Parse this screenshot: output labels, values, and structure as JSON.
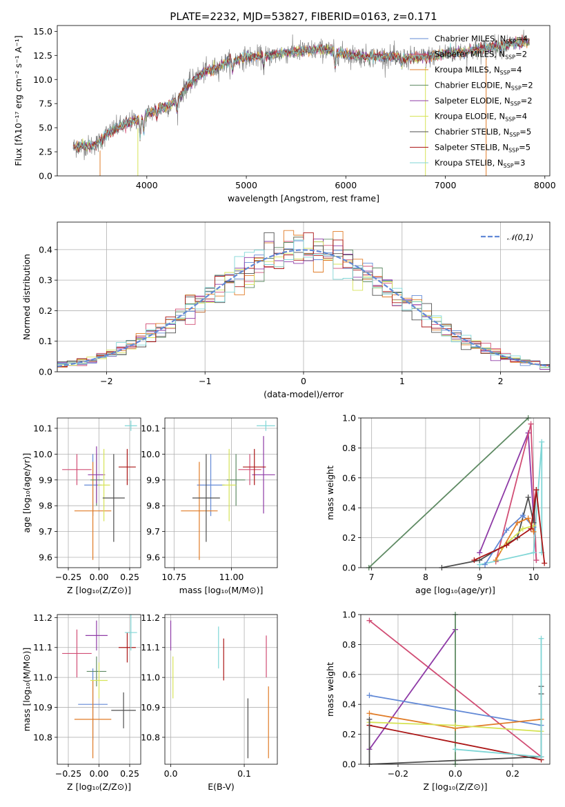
{
  "chart_data": [
    {
      "type": "line",
      "title": "PLATE=2232, MJD=53827, FIBERID=0163, z=0.171",
      "xlabel": "wavelength [Angstrom, rest frame]",
      "ylabel": "Flux [fλ10⁻¹⁷ erg cm⁻² s⁻¹ A⁻¹]",
      "xlim": [
        3100,
        8050
      ],
      "ylim": [
        0,
        15.6
      ],
      "xticks": [
        4000,
        5000,
        6000,
        7000,
        8000
      ],
      "yticks": [
        0.0,
        2.5,
        5.0,
        7.5,
        10.0,
        12.5,
        15.0
      ],
      "xtick_labels": [
        "4000",
        "5000",
        "6000",
        "7000",
        "8000"
      ],
      "ytick_labels": [
        "0.0",
        "2.5",
        "5.0",
        "7.5",
        "10.0",
        "12.5",
        "15.0"
      ],
      "grid": false,
      "legend_position": "top-right",
      "observed_spectrum": {
        "color": "#808080",
        "x": [
          3260,
          3400,
          3500,
          3600,
          3700,
          3800,
          3900,
          4000,
          4100,
          4200,
          4300,
          4400,
          4500,
          4600,
          4700,
          4800,
          4900,
          5000,
          5200,
          5400,
          5600,
          5800,
          6000,
          6200,
          6400,
          6600,
          6800,
          7000,
          7200,
          7400,
          7600,
          7800
        ],
        "y": [
          3.0,
          3.1,
          3.3,
          4.4,
          5.0,
          5.4,
          5.9,
          6.4,
          6.9,
          7.2,
          7.8,
          9.3,
          10.2,
          10.9,
          11.2,
          11.8,
          12.0,
          12.3,
          12.4,
          12.8,
          13.0,
          13.1,
          12.6,
          12.4,
          12.4,
          12.2,
          12.3,
          12.7,
          12.9,
          13.2,
          13.6,
          13.9
        ]
      },
      "series": [
        {
          "name": "Chabrier MILES, N_SSP=4",
          "color": "#6289d6"
        },
        {
          "name": "Salpeter MILES, N_SSP=2",
          "color": "#d14d74"
        },
        {
          "name": "Kroupa MILES, N_SSP=4",
          "color": "#e07b26"
        },
        {
          "name": "Chabrier ELODIE, N_SSP=2",
          "color": "#5e8a63"
        },
        {
          "name": "Salpeter ELODIE, N_SSP=2",
          "color": "#8e3aa6"
        },
        {
          "name": "Kroupa ELODIE, N_SSP=4",
          "color": "#d6e356"
        },
        {
          "name": "Chabrier STELIB, N_SSP=5",
          "color": "#4e4e4e"
        },
        {
          "name": "Salpeter STELIB, N_SSP=5",
          "color": "#ab1515"
        },
        {
          "name": "Kroupa STELIB, N_SSP=3",
          "color": "#7fd6d6"
        }
      ]
    },
    {
      "type": "bar",
      "subtype": "step-histogram",
      "xlabel": "(data-model)/error",
      "ylabel": "Normed distribution",
      "xlim": [
        -2.5,
        2.5
      ],
      "ylim": [
        0,
        0.49
      ],
      "xticks": [
        -2,
        -1,
        0,
        1,
        2
      ],
      "yticks": [
        0.0,
        0.1,
        0.2,
        0.3,
        0.4
      ],
      "xtick_labels": [
        "−2",
        "−1",
        "0",
        "1",
        "2"
      ],
      "ytick_labels": [
        "0.0",
        "0.1",
        "0.2",
        "0.3",
        "0.4"
      ],
      "grid": true,
      "legend_position": "top-right",
      "reference_curve": {
        "name": "𝒩(0,1)",
        "color": "#6289d6",
        "style": "dashed",
        "mean": 0,
        "sigma": 1
      },
      "bin_width": 0.2
    },
    {
      "type": "scatter",
      "subtype": "error-bars",
      "xlabel": "Z [log₁₀(Z/Z⊙)]",
      "ylabel": "age  [log₁₀(age/yr)]",
      "xlim": [
        -0.34,
        0.34
      ],
      "ylim": [
        9.56,
        10.14
      ],
      "xticks": [
        -0.25,
        0.0,
        0.25
      ],
      "yticks": [
        9.6,
        9.7,
        9.8,
        9.9,
        10.0,
        10.1
      ],
      "xtick_labels": [
        "−0.25",
        "0.00",
        "0.25"
      ],
      "ytick_labels": [
        "9.6",
        "9.7",
        "9.8",
        "9.9",
        "10.0",
        "10.1"
      ],
      "grid": true,
      "points": [
        {
          "color": "#6289d6",
          "x": -0.05,
          "xerr": 0.07,
          "y": 9.88,
          "yerr": 0.12
        },
        {
          "color": "#d14d74",
          "x": -0.18,
          "xerr": 0.12,
          "y": 9.94,
          "yerr": 0.06
        },
        {
          "color": "#e07b26",
          "x": -0.05,
          "xerr": 0.15,
          "y": 9.78,
          "yerr": 0.19
        },
        {
          "color": "#5e8a63",
          "x": -0.02,
          "xerr": 0.05,
          "y": 9.9,
          "yerr": 0.1
        },
        {
          "color": "#8e3aa6",
          "x": -0.02,
          "xerr": 0.07,
          "y": 9.92,
          "yerr": 0.11
        },
        {
          "color": "#d6e356",
          "x": 0.04,
          "xerr": 0.05,
          "y": 9.88,
          "yerr": 0.14
        },
        {
          "color": "#4e4e4e",
          "x": 0.12,
          "xerr": 0.09,
          "y": 9.83,
          "yerr": 0.17
        },
        {
          "color": "#ab1515",
          "x": 0.23,
          "xerr": 0.07,
          "y": 9.95,
          "yerr": 0.07
        },
        {
          "color": "#7fd6d6",
          "x": 0.26,
          "xerr": 0.05,
          "y": 10.11,
          "yerr": 0.02
        }
      ]
    },
    {
      "type": "scatter",
      "subtype": "error-bars",
      "xlabel": "mass [log₁₀(M/M⊙)]",
      "ylabel": "",
      "xlim": [
        10.71,
        11.2
      ],
      "ylim": [
        9.56,
        10.14
      ],
      "xticks": [
        10.75,
        11.0
      ],
      "yticks": [
        9.6,
        9.7,
        9.8,
        9.9,
        10.0,
        10.1
      ],
      "xtick_labels": [
        "10.75",
        "11.00"
      ],
      "ytick_labels": [
        "9.6",
        "9.7",
        "9.8",
        "9.9",
        "10.0",
        "10.1"
      ],
      "grid": true,
      "points": [
        {
          "color": "#6289d6",
          "x": 10.91,
          "xerr": 0.06,
          "y": 9.88,
          "yerr": 0.12
        },
        {
          "color": "#d14d74",
          "x": 11.08,
          "xerr": 0.05,
          "y": 9.94,
          "yerr": 0.06
        },
        {
          "color": "#e07b26",
          "x": 10.86,
          "xerr": 0.08,
          "y": 9.78,
          "yerr": 0.19
        },
        {
          "color": "#5e8a63",
          "x": 11.02,
          "xerr": 0.04,
          "y": 9.9,
          "yerr": 0.1
        },
        {
          "color": "#8e3aa6",
          "x": 11.14,
          "xerr": 0.05,
          "y": 9.92,
          "yerr": 0.15
        },
        {
          "color": "#d6e356",
          "x": 10.99,
          "xerr": 0.03,
          "y": 9.88,
          "yerr": 0.14
        },
        {
          "color": "#4e4e4e",
          "x": 10.89,
          "xerr": 0.06,
          "y": 9.83,
          "yerr": 0.17
        },
        {
          "color": "#ab1515",
          "x": 11.1,
          "xerr": 0.05,
          "y": 9.95,
          "yerr": 0.07
        },
        {
          "color": "#7fd6d6",
          "x": 11.15,
          "xerr": 0.04,
          "y": 10.11,
          "yerr": 0.02
        }
      ]
    },
    {
      "type": "line",
      "xlabel": "age  [log₁₀(age/yr)]",
      "ylabel": "mass weight",
      "xlim": [
        6.8,
        10.3
      ],
      "ylim": [
        0,
        1.0
      ],
      "xticks": [
        7,
        8,
        9,
        10
      ],
      "yticks": [
        0.0,
        0.2,
        0.4,
        0.6,
        0.8,
        1.0
      ],
      "xtick_labels": [
        "7",
        "8",
        "9",
        "10"
      ],
      "ytick_labels": [
        "0.0",
        "0.2",
        "0.4",
        "0.6",
        "0.8",
        "1.0"
      ],
      "grid": true,
      "series": [
        {
          "color": "#5e8a63",
          "x": [
            6.95,
            9.9
          ],
          "y": [
            0.0,
            1.0
          ]
        },
        {
          "color": "#8e3aa6",
          "x": [
            9.0,
            9.9,
            10.05
          ],
          "y": [
            0.1,
            0.9,
            0.05
          ]
        },
        {
          "color": "#d14d74",
          "x": [
            9.3,
            9.95,
            10.05
          ],
          "y": [
            0.04,
            0.96,
            0.05
          ]
        },
        {
          "color": "#7fd6d6",
          "x": [
            9.0,
            10.0,
            10.15,
            10.15
          ],
          "y": [
            0.02,
            0.1,
            0.84,
            0.1
          ]
        },
        {
          "color": "#4e4e4e",
          "x": [
            8.3,
            9.0,
            9.7,
            9.9,
            10.0,
            10.05
          ],
          "y": [
            0.0,
            0.05,
            0.2,
            0.47,
            0.3,
            0.52
          ]
        },
        {
          "color": "#6289d6",
          "x": [
            9.1,
            9.5,
            9.8,
            10.0
          ],
          "y": [
            0.02,
            0.25,
            0.35,
            0.27
          ]
        },
        {
          "color": "#e07b26",
          "x": [
            9.3,
            9.7,
            9.9,
            10.0
          ],
          "y": [
            0.05,
            0.3,
            0.33,
            0.24
          ]
        },
        {
          "color": "#d6e356",
          "x": [
            9.4,
            9.8,
            10.0
          ],
          "y": [
            0.13,
            0.26,
            0.28
          ]
        },
        {
          "color": "#ab1515",
          "x": [
            8.9,
            9.5,
            9.95,
            10.05,
            10.2
          ],
          "y": [
            0.05,
            0.15,
            0.26,
            0.52,
            0.03
          ]
        }
      ]
    },
    {
      "type": "scatter",
      "subtype": "error-bars",
      "xlabel": "Z [log₁₀(Z/Z⊙)]",
      "ylabel": "mass [log₁₀(M/M⊙)]",
      "xlim": [
        -0.34,
        0.34
      ],
      "ylim": [
        10.71,
        11.21
      ],
      "xticks": [
        -0.25,
        0.0,
        0.25
      ],
      "yticks": [
        10.8,
        10.9,
        11.0,
        11.1,
        11.2
      ],
      "xtick_labels": [
        "−0.25",
        "0.00",
        "0.25"
      ],
      "ytick_labels": [
        "10.8",
        "10.9",
        "11.0",
        "11.1",
        "11.2"
      ],
      "grid": true,
      "points": [
        {
          "color": "#6289d6",
          "x": -0.05,
          "xerr": 0.12,
          "y": 10.91,
          "yerr": 0.12
        },
        {
          "color": "#d14d74",
          "x": -0.18,
          "xerr": 0.12,
          "y": 11.08,
          "yerr": 0.08
        },
        {
          "color": "#e07b26",
          "x": -0.05,
          "xerr": 0.15,
          "y": 10.86,
          "yerr": 0.13
        },
        {
          "color": "#5e8a63",
          "x": -0.02,
          "xerr": 0.08,
          "y": 11.02,
          "yerr": 0.05
        },
        {
          "color": "#8e3aa6",
          "x": -0.02,
          "xerr": 0.09,
          "y": 11.14,
          "yerr": 0.05
        },
        {
          "color": "#d6e356",
          "x": 0.0,
          "xerr": 0.07,
          "y": 10.99,
          "yerr": 0.06
        },
        {
          "color": "#4e4e4e",
          "x": 0.2,
          "xerr": 0.1,
          "y": 10.89,
          "yerr": 0.06
        },
        {
          "color": "#ab1515",
          "x": 0.23,
          "xerr": 0.07,
          "y": 11.1,
          "yerr": 0.05
        },
        {
          "color": "#7fd6d6",
          "x": 0.26,
          "xerr": 0.05,
          "y": 11.15,
          "yerr": 0.06
        }
      ]
    },
    {
      "type": "scatter",
      "subtype": "error-bars",
      "xlabel": "E(B-V)",
      "ylabel": "",
      "xlim": [
        -0.008,
        0.145
      ],
      "ylim": [
        10.71,
        11.21
      ],
      "xticks": [
        0.0,
        0.1
      ],
      "yticks": [
        10.8,
        10.9,
        11.0,
        11.1,
        11.2
      ],
      "xtick_labels": [
        "0.0",
        "0.1"
      ],
      "ytick_labels": [
        "10.8",
        "10.9",
        "11.0",
        "11.1",
        "11.2"
      ],
      "grid": true,
      "points": [
        {
          "color": "#8e3aa6",
          "x": 0.0,
          "xerr": 0,
          "y": 11.14,
          "yerr": 0.05
        },
        {
          "color": "#d6e356",
          "x": 0.003,
          "xerr": 0,
          "y": 11.0,
          "yerr": 0.07
        },
        {
          "color": "#7fd6d6",
          "x": 0.065,
          "xerr": 0,
          "y": 11.1,
          "yerr": 0.07
        },
        {
          "color": "#ab1515",
          "x": 0.072,
          "xerr": 0,
          "y": 11.06,
          "yerr": 0.07
        },
        {
          "color": "#4e4e4e",
          "x": 0.105,
          "xerr": 0,
          "y": 10.83,
          "yerr": 0.1
        },
        {
          "color": "#d14d74",
          "x": 0.13,
          "xerr": 0,
          "y": 11.07,
          "yerr": 0.07
        },
        {
          "color": "#e07b26",
          "x": 0.133,
          "xerr": 0,
          "y": 10.85,
          "yerr": 0.12
        }
      ]
    },
    {
      "type": "line",
      "xlabel": "Z [log₁₀(Z/Z⊙)]",
      "ylabel": "mass weight",
      "xlim": [
        -0.33,
        0.33
      ],
      "ylim": [
        0,
        1.0
      ],
      "xticks": [
        -0.2,
        0.0,
        0.2
      ],
      "yticks": [
        0.0,
        0.2,
        0.4,
        0.6,
        0.8,
        1.0
      ],
      "xtick_labels": [
        "−0.2",
        "0.0",
        "0.2"
      ],
      "ytick_labels": [
        "0.0",
        "0.2",
        "0.4",
        "0.6",
        "0.8",
        "1.0"
      ],
      "grid": true,
      "series": [
        {
          "color": "#d14d74",
          "x": [
            -0.3,
            0.3
          ],
          "y": [
            0.96,
            0.05
          ]
        },
        {
          "color": "#8e3aa6",
          "x": [
            -0.3,
            0.0
          ],
          "y": [
            0.1,
            0.9
          ]
        },
        {
          "color": "#5e8a63",
          "x": [
            0.0,
            0.0
          ],
          "y": [
            0.0,
            1.0
          ]
        },
        {
          "color": "#6289d6",
          "x": [
            -0.3,
            0.3
          ],
          "y": [
            0.46,
            0.26
          ]
        },
        {
          "color": "#e07b26",
          "x": [
            -0.3,
            0.0,
            0.3
          ],
          "y": [
            0.34,
            0.24,
            0.3
          ]
        },
        {
          "color": "#d6e356",
          "x": [
            -0.3,
            0.0,
            0.3
          ],
          "y": [
            0.28,
            0.26,
            0.22
          ]
        },
        {
          "color": "#ab1515",
          "x": [
            -0.3,
            0.3
          ],
          "y": [
            0.26,
            0.03
          ]
        },
        {
          "color": "#4e4e4e",
          "x": [
            -0.3,
            -0.3,
            0.3,
            0.3,
            0.3
          ],
          "y": [
            0.3,
            0.0,
            0.05,
            0.47,
            0.52
          ]
        },
        {
          "color": "#7fd6d6",
          "x": [
            0.0,
            0.3,
            0.3
          ],
          "y": [
            0.1,
            0.05,
            0.84
          ]
        }
      ]
    }
  ]
}
